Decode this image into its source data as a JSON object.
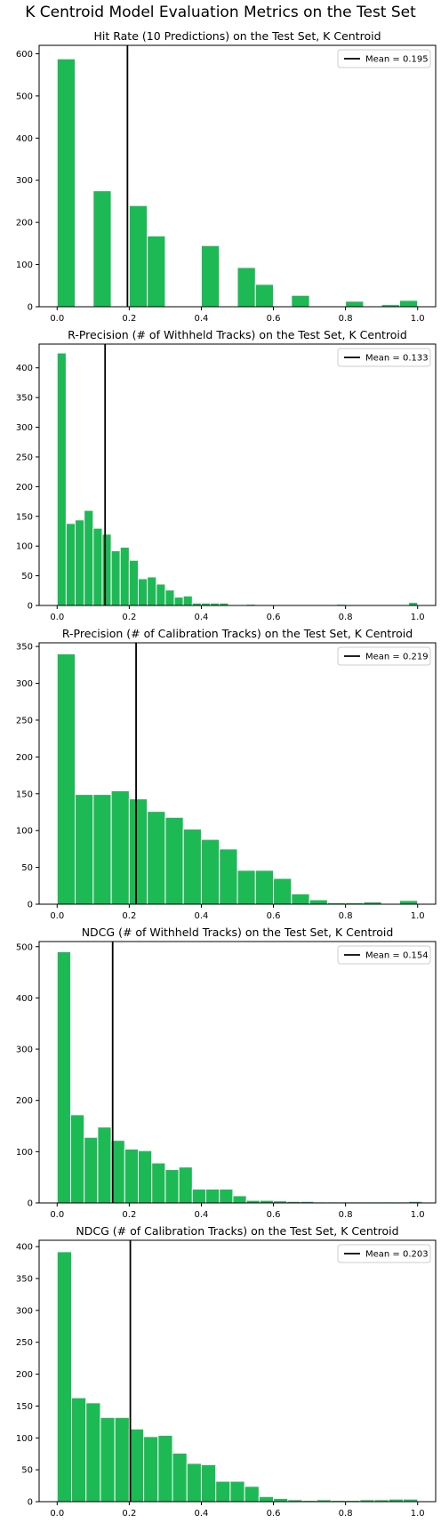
{
  "suptitle": "K Centroid Model Evaluation Metrics on the Test Set",
  "colors": {
    "bar": "#1db954",
    "mean_line": "#000000",
    "axes": "#000000"
  },
  "chart_data": [
    {
      "type": "bar",
      "title": "Hit Rate (10 Predictions) on the Test Set, K Centroid",
      "xlim": [
        -0.05,
        1.05
      ],
      "ylim": [
        0,
        620
      ],
      "xticks": [
        0.0,
        0.2,
        0.4,
        0.6,
        0.8,
        1.0
      ],
      "xtick_labels": [
        "0.0",
        "0.2",
        "0.4",
        "0.6",
        "0.8",
        "1.0"
      ],
      "yticks": [
        0,
        100,
        200,
        300,
        400,
        500,
        600
      ],
      "bin_width": 0.05,
      "bin_starts": [
        0.0,
        0.05,
        0.1,
        0.15,
        0.2,
        0.25,
        0.3,
        0.35,
        0.4,
        0.45,
        0.5,
        0.55,
        0.6,
        0.65,
        0.7,
        0.75,
        0.8,
        0.85,
        0.9,
        0.95
      ],
      "values": [
        588,
        0,
        275,
        0,
        240,
        168,
        0,
        0,
        145,
        0,
        93,
        53,
        0,
        27,
        0,
        0,
        13,
        0,
        5,
        15
      ],
      "mean": 0.195,
      "legend": "Mean = 0.195",
      "legend_loc": "upper right"
    },
    {
      "type": "bar",
      "title": "R-Precision (# of Withheld Tracks) on the Test Set, K Centroid",
      "xlim": [
        -0.05,
        1.05
      ],
      "ylim": [
        0,
        440
      ],
      "xticks": [
        0.0,
        0.2,
        0.4,
        0.6,
        0.8,
        1.0
      ],
      "xtick_labels": [
        "0.0",
        "0.2",
        "0.4",
        "0.6",
        "0.8",
        "1.0"
      ],
      "yticks": [
        0,
        50,
        100,
        150,
        200,
        250,
        300,
        350,
        400
      ],
      "bin_width": 0.025,
      "bin_starts": [
        0.0,
        0.025,
        0.05,
        0.075,
        0.1,
        0.125,
        0.15,
        0.175,
        0.2,
        0.225,
        0.25,
        0.275,
        0.3,
        0.325,
        0.35,
        0.375,
        0.4,
        0.425,
        0.45,
        0.475,
        0.5,
        0.525,
        0.55,
        0.575,
        0.6,
        0.625,
        0.65,
        0.675,
        0.7,
        0.725,
        0.75,
        0.775,
        0.8,
        0.825,
        0.85,
        0.875,
        0.9,
        0.925,
        0.95,
        0.975
      ],
      "values": [
        425,
        138,
        144,
        160,
        130,
        120,
        92,
        98,
        76,
        45,
        48,
        36,
        26,
        14,
        16,
        4,
        4,
        4,
        4,
        0,
        0,
        2,
        0,
        0,
        0,
        0,
        0,
        0,
        0,
        0,
        0,
        2,
        0,
        0,
        0,
        0,
        0,
        0,
        0,
        5
      ],
      "mean": 0.133,
      "legend": "Mean = 0.133",
      "legend_loc": "upper right"
    },
    {
      "type": "bar",
      "title": "R-Precision (# of Calibration Tracks) on the Test Set, K Centroid",
      "xlim": [
        -0.05,
        1.05
      ],
      "ylim": [
        0,
        355
      ],
      "xticks": [
        0.0,
        0.2,
        0.4,
        0.6,
        0.8,
        1.0
      ],
      "xtick_labels": [
        "0.0",
        "0.2",
        "0.4",
        "0.6",
        "0.8",
        "1.0"
      ],
      "yticks": [
        0,
        50,
        100,
        150,
        200,
        250,
        300,
        350
      ],
      "bin_width": 0.05,
      "bin_starts": [
        0.0,
        0.05,
        0.1,
        0.15,
        0.2,
        0.25,
        0.3,
        0.35,
        0.4,
        0.45,
        0.5,
        0.55,
        0.6,
        0.65,
        0.7,
        0.75,
        0.8,
        0.85,
        0.9,
        0.95
      ],
      "values": [
        340,
        149,
        149,
        154,
        143,
        126,
        118,
        102,
        88,
        75,
        46,
        46,
        35,
        14,
        6,
        2,
        2,
        3,
        0,
        5
      ],
      "mean": 0.219,
      "legend": "Mean = 0.219",
      "legend_loc": "upper right"
    },
    {
      "type": "bar",
      "title": "NDCG (# of Withheld Tracks) on the Test Set, K Centroid",
      "xlim": [
        -0.05,
        1.05
      ],
      "ylim": [
        0,
        510
      ],
      "xticks": [
        0.0,
        0.2,
        0.4,
        0.6,
        0.8,
        1.0
      ],
      "xtick_labels": [
        "0.0",
        "0.2",
        "0.4",
        "0.6",
        "0.8",
        "1.0"
      ],
      "yticks": [
        0,
        100,
        200,
        300,
        400,
        500
      ],
      "bin_width": 0.0375,
      "bin_starts": [
        0.0,
        0.0375,
        0.075,
        0.1125,
        0.15,
        0.1875,
        0.225,
        0.2625,
        0.3,
        0.3375,
        0.375,
        0.4125,
        0.45,
        0.4875,
        0.525,
        0.5625,
        0.6,
        0.6375,
        0.675,
        0.7125,
        0.75,
        0.7875,
        0.825,
        0.8625,
        0.9,
        0.9375,
        0.975
      ],
      "values": [
        490,
        172,
        128,
        148,
        122,
        105,
        102,
        78,
        65,
        70,
        27,
        27,
        27,
        14,
        5,
        5,
        4,
        3,
        3,
        2,
        2,
        2,
        2,
        2,
        2,
        2,
        3
      ],
      "mean": 0.154,
      "legend": "Mean = 0.154",
      "legend_loc": "upper right"
    },
    {
      "type": "bar",
      "title": "NDCG (# of Calibration Tracks) on the Test Set, K Centroid",
      "xlim": [
        -0.05,
        1.05
      ],
      "ylim": [
        0,
        410
      ],
      "xticks": [
        0.0,
        0.2,
        0.4,
        0.6,
        0.8,
        1.0
      ],
      "xtick_labels": [
        "0.0",
        "0.2",
        "0.4",
        "0.6",
        "0.8",
        "1.0"
      ],
      "yticks": [
        0,
        50,
        100,
        150,
        200,
        250,
        300,
        350,
        400
      ],
      "bin_width": 0.04,
      "bin_starts": [
        0.0,
        0.04,
        0.08,
        0.12,
        0.16,
        0.2,
        0.24,
        0.28,
        0.32,
        0.36,
        0.4,
        0.44,
        0.48,
        0.52,
        0.56,
        0.6,
        0.64,
        0.68,
        0.72,
        0.76,
        0.8,
        0.84,
        0.88,
        0.92,
        0.96
      ],
      "values": [
        392,
        163,
        155,
        132,
        132,
        114,
        102,
        104,
        76,
        60,
        58,
        32,
        32,
        24,
        8,
        5,
        3,
        2,
        3,
        2,
        2,
        3,
        3,
        4,
        4
      ],
      "mean": 0.203,
      "legend": "Mean = 0.203",
      "legend_loc": "upper right"
    }
  ]
}
